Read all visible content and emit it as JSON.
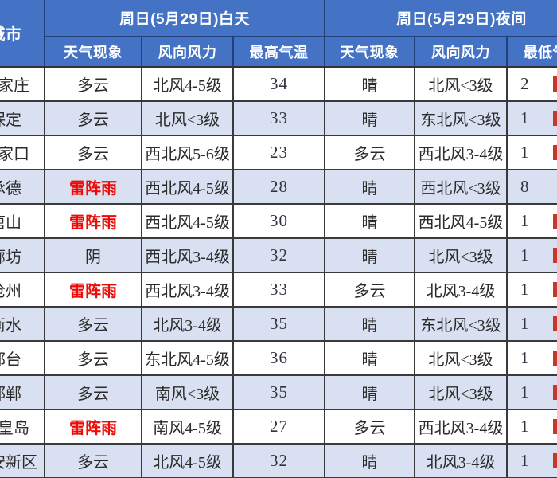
{
  "table": {
    "corner_header": "城市",
    "day_section_header": "周日(5月29日)白天",
    "night_section_header": "周日(5月29日)夜间",
    "sub_headers": {
      "weather": "天气现象",
      "wind": "风向风力",
      "max_temp": "最高气温",
      "min_temp": "最低气温"
    },
    "rows": [
      {
        "city": "石家庄",
        "day_weather": "多云",
        "day_red": false,
        "day_wind": "北风4-5级",
        "max_temp": "34",
        "night_weather": "晴",
        "night_wind": "北风<3级",
        "min_temp_partial": "2",
        "min_temp_cut": true
      },
      {
        "city": "保定",
        "day_weather": "多云",
        "day_red": false,
        "day_wind": "北风<3级",
        "max_temp": "33",
        "night_weather": "晴",
        "night_wind": "东北风<3级",
        "min_temp_partial": "1",
        "min_temp_cut": true
      },
      {
        "city": "张家口",
        "day_weather": "多云",
        "day_red": false,
        "day_wind": "西北风5-6级",
        "max_temp": "23",
        "night_weather": "多云",
        "night_wind": "西北风3-4级",
        "min_temp_partial": "1",
        "min_temp_cut": true
      },
      {
        "city": "承德",
        "day_weather": "雷阵雨",
        "day_red": true,
        "day_wind": "西北风4-5级",
        "max_temp": "28",
        "night_weather": "晴",
        "night_wind": "西北风<3级",
        "min_temp_partial": "8",
        "min_temp_cut": false
      },
      {
        "city": "唐山",
        "day_weather": "雷阵雨",
        "day_red": true,
        "day_wind": "西北风4-5级",
        "max_temp": "30",
        "night_weather": "晴",
        "night_wind": "西北风4-5级",
        "min_temp_partial": "1",
        "min_temp_cut": true
      },
      {
        "city": "廊坊",
        "day_weather": "阴",
        "day_red": false,
        "day_wind": "西北风3-4级",
        "max_temp": "32",
        "night_weather": "晴",
        "night_wind": "北风<3级",
        "min_temp_partial": "1",
        "min_temp_cut": true
      },
      {
        "city": "沧州",
        "day_weather": "雷阵雨",
        "day_red": true,
        "day_wind": "西北风3-4级",
        "max_temp": "33",
        "night_weather": "多云",
        "night_wind": "北风3-4级",
        "min_temp_partial": "1",
        "min_temp_cut": true
      },
      {
        "city": "衡水",
        "day_weather": "多云",
        "day_red": false,
        "day_wind": "北风3-4级",
        "max_temp": "35",
        "night_weather": "晴",
        "night_wind": "东北风<3级",
        "min_temp_partial": "1",
        "min_temp_cut": true
      },
      {
        "city": "邢台",
        "day_weather": "多云",
        "day_red": false,
        "day_wind": "东北风4-5级",
        "max_temp": "36",
        "night_weather": "晴",
        "night_wind": "北风<3级",
        "min_temp_partial": "1",
        "min_temp_cut": true
      },
      {
        "city": "邯郸",
        "day_weather": "多云",
        "day_red": false,
        "day_wind": "南风<3级",
        "max_temp": "35",
        "night_weather": "晴",
        "night_wind": "北风<3级",
        "min_temp_partial": "1",
        "min_temp_cut": true
      },
      {
        "city": "秦皇岛",
        "day_weather": "雷阵雨",
        "day_red": true,
        "day_wind": "南风4-5级",
        "max_temp": "27",
        "night_weather": "多云",
        "night_wind": "西北风3-4级",
        "min_temp_partial": "1",
        "min_temp_cut": true
      },
      {
        "city": "雄安新区",
        "day_weather": "多云",
        "day_red": false,
        "day_wind": "北风4-5级",
        "max_temp": "32",
        "night_weather": "晴",
        "night_wind": "北风3-4级",
        "min_temp_partial": "1",
        "min_temp_cut": true
      }
    ]
  },
  "colors": {
    "header_blue": "#4472c4",
    "header_border_navy": "#24407c",
    "stripe_lavender": "#d9e0f1",
    "grid_border": "#3a3a3a",
    "alert_red": "#ec0d0a",
    "text_dark": "#2b2b2b",
    "header_text": "#ffffff"
  }
}
